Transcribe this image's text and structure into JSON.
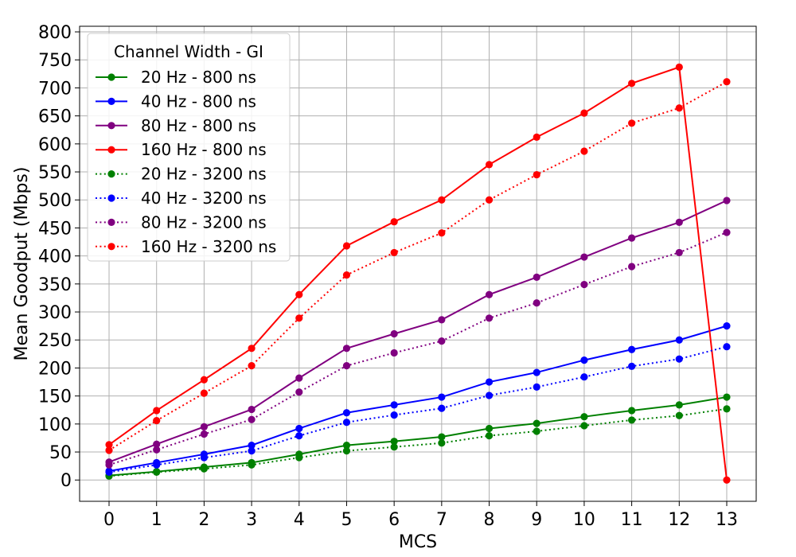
{
  "chart_data": {
    "type": "line",
    "xlabel": "MCS",
    "ylabel": "Mean Goodput (Mbps)",
    "x": [
      0,
      1,
      2,
      3,
      4,
      5,
      6,
      7,
      8,
      9,
      10,
      11,
      12,
      13
    ],
    "xlim": [
      -0.62,
      13.62
    ],
    "ylim": [
      -38,
      810
    ],
    "yticks": [
      0,
      50,
      100,
      150,
      200,
      250,
      300,
      350,
      400,
      450,
      500,
      550,
      600,
      650,
      700,
      750,
      800
    ],
    "grid": true,
    "legend": {
      "title": "Channel Width - GI",
      "placement": "top-left"
    },
    "series": [
      {
        "name": "20 Hz - 800 ns",
        "color": "#008000",
        "style": "solid",
        "values": [
          8,
          15,
          23,
          31,
          46,
          62,
          69,
          77,
          92,
          101,
          113,
          124,
          134,
          148
        ]
      },
      {
        "name": "40 Hz - 800 ns",
        "color": "#0000ff",
        "style": "solid",
        "values": [
          16,
          31,
          46,
          62,
          92,
          120,
          134,
          148,
          175,
          192,
          214,
          233,
          250,
          275
        ]
      },
      {
        "name": "80 Hz - 800 ns",
        "color": "#800080",
        "style": "solid",
        "values": [
          32,
          64,
          95,
          126,
          182,
          235,
          261,
          286,
          331,
          362,
          398,
          432,
          460,
          499
        ]
      },
      {
        "name": "160 Hz - 800 ns",
        "color": "#ff0000",
        "style": "solid",
        "values": [
          63,
          124,
          179,
          235,
          331,
          418,
          461,
          500,
          563,
          612,
          655,
          708,
          737,
          0
        ]
      },
      {
        "name": "20 Hz - 3200 ns",
        "color": "#008000",
        "style": "dotted",
        "values": [
          7,
          14,
          20,
          27,
          40,
          52,
          59,
          66,
          79,
          87,
          97,
          107,
          115,
          127
        ]
      },
      {
        "name": "40 Hz - 3200 ns",
        "color": "#0000ff",
        "style": "dotted",
        "values": [
          14,
          27,
          40,
          52,
          79,
          103,
          116,
          128,
          151,
          166,
          184,
          203,
          216,
          238
        ]
      },
      {
        "name": "80 Hz - 3200 ns",
        "color": "#800080",
        "style": "dotted",
        "values": [
          27,
          54,
          82,
          108,
          157,
          204,
          227,
          248,
          289,
          316,
          349,
          381,
          406,
          442
        ]
      },
      {
        "name": "160 Hz - 3200 ns",
        "color": "#ff0000",
        "style": "dotted",
        "values": [
          53,
          106,
          155,
          204,
          289,
          366,
          406,
          441,
          500,
          545,
          587,
          637,
          664,
          711
        ]
      }
    ]
  }
}
